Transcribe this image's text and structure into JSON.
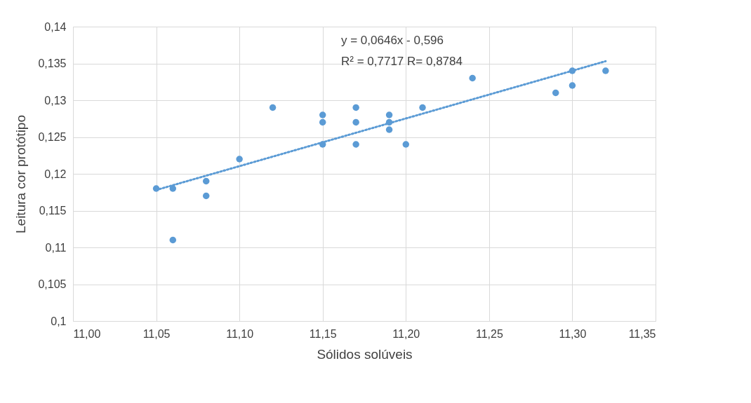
{
  "chart_data": {
    "type": "scatter",
    "xlabel": "Sólidos solúveis",
    "ylabel": "Leitura cor protótipo",
    "annotations": [
      "y = 0,0646x - 0,596",
      "R² = 0,7717 R= 0,8784"
    ],
    "series": [
      {
        "color": "#5b9bd5",
        "marker": "circle",
        "x": [
          11.05,
          11.06,
          11.06,
          11.08,
          11.08,
          11.1,
          11.12,
          11.15,
          11.15,
          11.15,
          11.17,
          11.17,
          11.17,
          11.19,
          11.19,
          11.19,
          11.2,
          11.21,
          11.24,
          11.29,
          11.3,
          11.3,
          11.32
        ],
        "values": [
          0.118,
          0.118,
          0.111,
          0.119,
          0.117,
          0.122,
          0.129,
          0.128,
          0.127,
          0.124,
          0.129,
          0.127,
          0.124,
          0.128,
          0.127,
          0.126,
          0.124,
          0.129,
          0.133,
          0.131,
          0.134,
          0.132,
          0.134
        ]
      },
      {
        "type": "line",
        "color": "#5b9bd5",
        "line_style": "dotted",
        "marker": "none",
        "x": [
          11.05,
          11.32
        ],
        "values": [
          0.1178,
          0.1353
        ]
      }
    ],
    "xlim": [
      11.0,
      11.35
    ],
    "xticks": [
      {
        "value": 11.0,
        "label": "11,00"
      },
      {
        "value": 11.05,
        "label": "11,05"
      },
      {
        "value": 11.1,
        "label": "11,10"
      },
      {
        "value": 11.15,
        "label": "11,15"
      },
      {
        "value": 11.2,
        "label": "11,20"
      },
      {
        "value": 11.25,
        "label": "11,25"
      },
      {
        "value": 11.3,
        "label": "11,30"
      },
      {
        "value": 11.35,
        "label": "11,35"
      }
    ],
    "ylim": [
      0.1,
      0.14
    ],
    "yticks": [
      {
        "value": 0.1,
        "label": "0,1"
      },
      {
        "value": 0.105,
        "label": "0,105"
      },
      {
        "value": 0.11,
        "label": "0,11"
      },
      {
        "value": 0.115,
        "label": "0,115"
      },
      {
        "value": 0.12,
        "label": "0,12"
      },
      {
        "value": 0.125,
        "label": "0,125"
      },
      {
        "value": 0.13,
        "label": "0,13"
      },
      {
        "value": 0.135,
        "label": "0,135"
      },
      {
        "value": 0.14,
        "label": "0,14"
      }
    ],
    "grid": true
  }
}
